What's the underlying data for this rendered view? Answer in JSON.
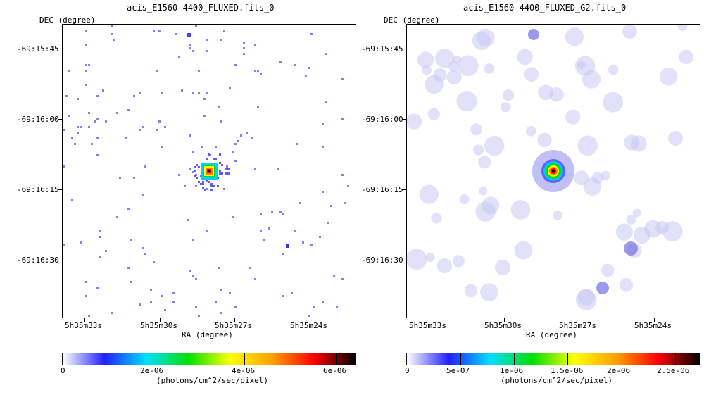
{
  "panels": [
    {
      "title": "acis_E1560-4400_FLUXED.fits_0",
      "dec_label": "DEC (degree)",
      "ra_label": "RA (degree)",
      "dec_ticks": [
        "-69:15:45",
        "-69:16:00",
        "-69:16:15",
        "-69:16:30"
      ],
      "ra_ticks": [
        "5h35m33s",
        "5h35m30s",
        "5h35m27s",
        "5h35m24s"
      ],
      "colorbar": {
        "tick_labels": [
          "0",
          "2e-06",
          "4e-06",
          "6e-06"
        ],
        "unit": "(photons/cm^2/sec/pixel)"
      }
    },
    {
      "title": "acis_E1560-4400_FLUXED_G2.fits_0",
      "dec_label": "DEC (degree)",
      "ra_label": "RA (degree)",
      "dec_ticks": [
        "-69:15:45",
        "-69:16:00",
        "-69:16:15",
        "-69:16:30"
      ],
      "ra_ticks": [
        "5h35m33s",
        "5h35m30s",
        "5h35m27s",
        "5h35m24s"
      ],
      "colorbar": {
        "tick_labels": [
          "0",
          "5e-07",
          "1e-06",
          "1.5e-06",
          "2e-06",
          "2.5e-06"
        ],
        "unit": "(photons/cm^2/sec/pixel)"
      }
    }
  ],
  "colormap": [
    "#ffffff",
    "#2020ff",
    "#00e0ff",
    "#00e000",
    "#ffff00",
    "#ffa000",
    "#ff0000",
    "#000000"
  ]
}
